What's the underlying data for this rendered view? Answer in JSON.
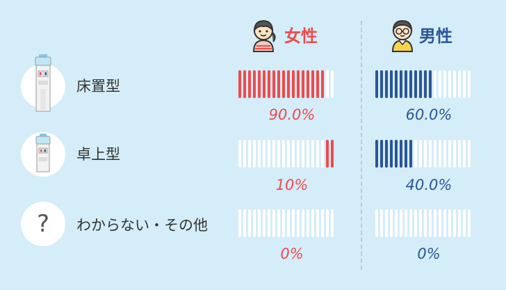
{
  "chart_data": {
    "type": "bar",
    "categories": [
      "床置型",
      "卓上型",
      "わからない・その他"
    ],
    "series": [
      {
        "name": "女性",
        "values": [
          90.0,
          10,
          0
        ],
        "labels": [
          "90.0%",
          "10%",
          "0%"
        ],
        "color": "#ef4a4c"
      },
      {
        "name": "男性",
        "values": [
          60.0,
          40.0,
          0
        ],
        "labels": [
          "60.0%",
          "40.0%",
          "0%"
        ],
        "color": "#2b5597"
      }
    ],
    "segments_per_bar": 20,
    "empty_color": "#ffffff"
  },
  "colors": {
    "background": "#d4edf8",
    "female": "#ef4a4c",
    "male": "#2b5597",
    "divider": "#a9d2e8",
    "icon_circle": "#ffffff",
    "label_text": "#333333"
  },
  "icons": [
    "floor-water-server-icon",
    "tabletop-water-server-icon",
    "question-mark-icon",
    "female-avatar-icon",
    "male-avatar-icon"
  ],
  "question_glyph": "?"
}
